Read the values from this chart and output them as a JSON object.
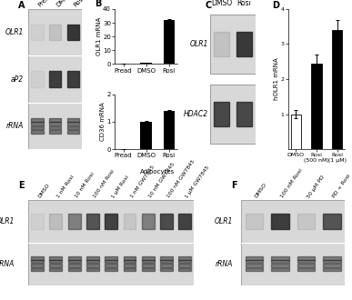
{
  "panel_A": {
    "label": "A",
    "col_labels": [
      "Pread",
      "DMSO",
      "Rosi"
    ],
    "row_labels": [
      "OLR1",
      "aP2",
      "rRNA"
    ],
    "band_intensities": {
      "OLR1": [
        0.05,
        0.12,
        0.92
      ],
      "aP2": [
        0.05,
        0.88,
        0.88
      ],
      "rRNA": [
        0.72,
        0.72,
        0.72
      ]
    },
    "bg_color": "#d8d8d8"
  },
  "panel_B_top": {
    "label": "B",
    "ylabel": "OLR1 mRNA",
    "categories": [
      "Pread",
      "DMSO",
      "Rosi"
    ],
    "values": [
      0.25,
      1.1,
      32.0
    ],
    "errors": [
      0.05,
      0.12,
      0.55
    ],
    "ylim": [
      0,
      40
    ],
    "yticks": [
      0,
      10,
      20,
      30,
      40
    ]
  },
  "panel_B_bottom": {
    "ylabel": "CD36 mRNA",
    "categories": [
      "Pread",
      "DMSO",
      "Rosi"
    ],
    "values": [
      0.0,
      1.0,
      1.38
    ],
    "errors": [
      0.0,
      0.04,
      0.06
    ],
    "ylim": [
      0,
      2
    ],
    "yticks": [
      0,
      1,
      2
    ],
    "xlabel_group": "Adipocytes"
  },
  "panel_C": {
    "label": "C",
    "col_labels": [
      "DMSO",
      "Rosi"
    ],
    "row_labels": [
      "OLR1",
      "HDAC2"
    ],
    "band_intensities": {
      "OLR1": [
        0.12,
        0.9
      ],
      "HDAC2": [
        0.82,
        0.82
      ]
    },
    "bg_color": "#d8d8d8"
  },
  "panel_D": {
    "label": "D",
    "ylabel": "hOLR1 mRNA",
    "categories": [
      "DMSO",
      "Rosi\n(500 nM)",
      "Rosi\n(1 μM)"
    ],
    "values": [
      1.0,
      2.45,
      3.4
    ],
    "errors": [
      0.12,
      0.25,
      0.28
    ],
    "bar_colors": [
      "white",
      "black",
      "black"
    ],
    "ylim": [
      0,
      4
    ],
    "yticks": [
      1,
      2,
      3,
      4
    ]
  },
  "panel_E": {
    "label": "E",
    "col_labels": [
      "DMSO",
      "1 nM Rosi",
      "10 nM Rosi",
      "100 nM Rosi",
      "1 μM Rosi",
      "1 nM GW7845",
      "10 nM GW7845",
      "100 nM GW7845",
      "1 μM GW7845"
    ],
    "row_labels": [
      "OLR1",
      "rRNA"
    ],
    "band_intensities": {
      "OLR1": [
        0.05,
        0.15,
        0.5,
        0.75,
        0.85,
        0.1,
        0.5,
        0.8,
        0.85
      ],
      "rRNA": [
        0.72,
        0.72,
        0.72,
        0.72,
        0.72,
        0.72,
        0.72,
        0.72,
        0.72
      ]
    },
    "bg_color": "#d8d8d8"
  },
  "panel_F": {
    "label": "F",
    "col_labels": [
      "DMSO",
      "100 nM Rosi",
      "50 μM PD",
      "PD + Rosi"
    ],
    "row_labels": [
      "OLR1",
      "rRNA"
    ],
    "band_intensities": {
      "OLR1": [
        0.1,
        0.88,
        0.1,
        0.75
      ],
      "rRNA": [
        0.68,
        0.68,
        0.68,
        0.68
      ]
    },
    "bg_color": "#d8d8d8"
  }
}
